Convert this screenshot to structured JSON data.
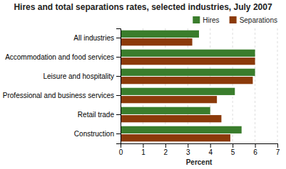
{
  "chart_data": {
    "type": "bar",
    "orientation": "horizontal",
    "title": "Hires and total separations rates, selected industries, July 2007",
    "categories": [
      "All industries",
      "Accommodation and food services",
      "Leisure and hospitality",
      "Professional and business services",
      "Retail trade",
      "Construction"
    ],
    "series": [
      {
        "name": "Hires",
        "color": "#3a7d2c",
        "values": [
          3.5,
          6.0,
          6.0,
          5.1,
          4.0,
          5.4
        ]
      },
      {
        "name": "Separations",
        "color": "#8b3a0a",
        "values": [
          3.2,
          6.0,
          5.9,
          4.3,
          4.5,
          4.9
        ]
      }
    ],
    "xlabel": "Percent",
    "xlim": [
      0,
      7
    ],
    "xticks": [
      0,
      1,
      2,
      3,
      4,
      5,
      6,
      7
    ],
    "grid": true,
    "legend": "upper right"
  }
}
